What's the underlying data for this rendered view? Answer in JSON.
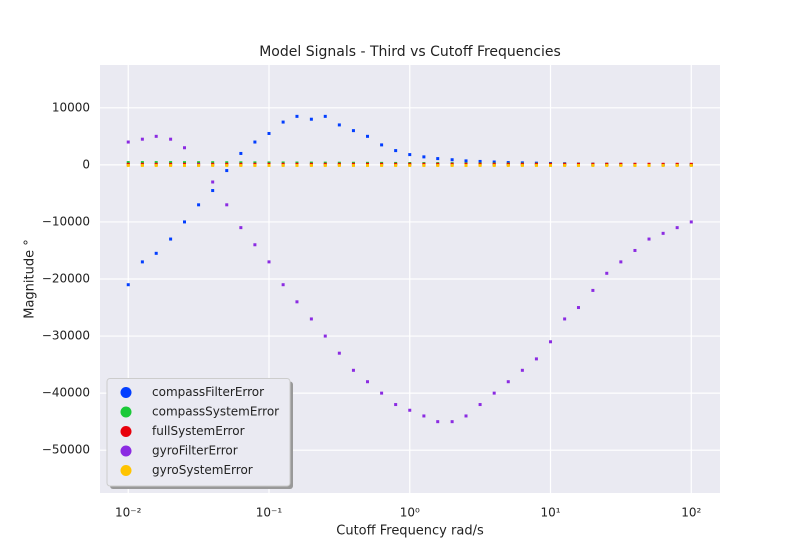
{
  "chart_data": {
    "type": "scatter",
    "title": "Model Signals - Third vs Cutoff Frequencies",
    "x_label": "Cutoff Frequency rad/s",
    "y_label": "Magnitude °",
    "x_scale": "log",
    "grid": true,
    "legend_position": "lower left",
    "x": [
      0.01,
      0.0126,
      0.0158,
      0.02,
      0.0251,
      0.0316,
      0.0398,
      0.0501,
      0.0631,
      0.0794,
      0.1,
      0.126,
      0.158,
      0.2,
      0.251,
      0.316,
      0.398,
      0.501,
      0.631,
      0.794,
      1,
      1.26,
      1.58,
      2,
      2.51,
      3.16,
      3.98,
      5.01,
      6.31,
      7.94,
      10,
      12.6,
      15.8,
      20,
      25.1,
      31.6,
      39.8,
      50.1,
      63.1,
      79.4,
      100
    ],
    "series": [
      {
        "name": "compassFilterError",
        "color": "#023eff",
        "values": [
          -21000,
          -17000,
          -15500,
          -13000,
          -10000,
          -7000,
          -4500,
          -1000,
          2000,
          4000,
          5500,
          7500,
          8500,
          8000,
          8500,
          7000,
          6000,
          5000,
          3500,
          2500,
          1800,
          1400,
          1100,
          900,
          700,
          600,
          500,
          400,
          350,
          300,
          250,
          200,
          150,
          120,
          100,
          80,
          60,
          50,
          40,
          30,
          20
        ]
      },
      {
        "name": "compassSystemError",
        "color": "#1ac938",
        "values": [
          400,
          400,
          400,
          400,
          390,
          380,
          380,
          370,
          360,
          350,
          340,
          330,
          320,
          310,
          300,
          290,
          280,
          270,
          260,
          250,
          240,
          230,
          220,
          210,
          200,
          190,
          180,
          170,
          160,
          150,
          140,
          130,
          120,
          110,
          100,
          90,
          80,
          70,
          60,
          50,
          40
        ]
      },
      {
        "name": "fullSystemError",
        "color": "#e8000b",
        "values": [
          100,
          100,
          100,
          100,
          100,
          100,
          100,
          100,
          100,
          100,
          100,
          100,
          100,
          100,
          100,
          100,
          100,
          100,
          100,
          100,
          100,
          100,
          100,
          100,
          100,
          100,
          100,
          100,
          100,
          100,
          100,
          100,
          100,
          100,
          100,
          100,
          100,
          100,
          100,
          100,
          100
        ]
      },
      {
        "name": "gyroFilterError",
        "color": "#8b2be2",
        "values": [
          4000,
          4500,
          5000,
          4500,
          3000,
          0,
          -3000,
          -7000,
          -11000,
          -14000,
          -17000,
          -21000,
          -24000,
          -27000,
          -30000,
          -33000,
          -36000,
          -38000,
          -40000,
          -42000,
          -43000,
          -44000,
          -45000,
          -45000,
          -44000,
          -42000,
          -40000,
          -38000,
          -36000,
          -34000,
          -31000,
          -27000,
          -25000,
          -22000,
          -19000,
          -17000,
          -15000,
          -13000,
          -12000,
          -11000,
          -10000
        ]
      },
      {
        "name": "gyroSystemError",
        "color": "#ffc400",
        "values": [
          -100,
          -100,
          -100,
          -100,
          -100,
          -100,
          -100,
          -100,
          -100,
          -100,
          -100,
          -100,
          -100,
          -100,
          -100,
          -100,
          -100,
          -100,
          -100,
          -100,
          -100,
          -100,
          -100,
          -100,
          -100,
          -100,
          -100,
          -100,
          -100,
          -100,
          -100,
          -100,
          -100,
          -100,
          -100,
          -100,
          -100,
          -100,
          -100,
          -100,
          -100
        ]
      }
    ],
    "xlim": [
      0.0063,
      160
    ],
    "ylim": [
      -57500,
      17500
    ],
    "xticks": [
      {
        "value": 0.01,
        "label": "10⁻²"
      },
      {
        "value": 0.1,
        "label": "10⁻¹"
      },
      {
        "value": 1,
        "label": "10⁰"
      },
      {
        "value": 10,
        "label": "10¹"
      },
      {
        "value": 100,
        "label": "10²"
      }
    ],
    "yticks": [
      {
        "value": -50000,
        "label": "−50000"
      },
      {
        "value": -40000,
        "label": "−40000"
      },
      {
        "value": -30000,
        "label": "−30000"
      },
      {
        "value": -20000,
        "label": "−20000"
      },
      {
        "value": -10000,
        "label": "−10000"
      },
      0,
      10000
    ]
  }
}
